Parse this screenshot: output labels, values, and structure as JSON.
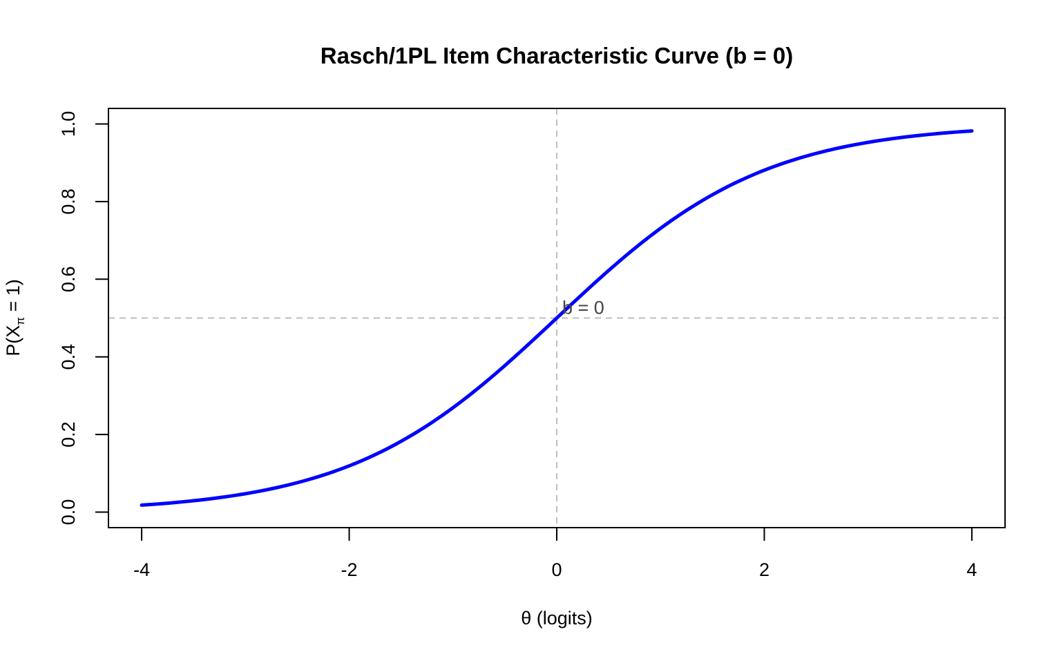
{
  "chart_data": {
    "type": "line",
    "title": "Rasch/1PL Item Characteristic Curve (b = 0)",
    "xlabel": "θ (logits)",
    "ylabel": "P(X_π = 1)",
    "ylabel_parts": {
      "prefix": "P(X",
      "subscript": "π",
      "suffix": " = 1)"
    },
    "xlim": [
      -4.32,
      4.32
    ],
    "ylim": [
      -0.04,
      1.04
    ],
    "x_ticks": [
      -4,
      -2,
      0,
      2,
      4
    ],
    "x_tick_labels": [
      "-4",
      "-2",
      "0",
      "2",
      "4"
    ],
    "y_ticks": [
      0,
      0.2,
      0.4,
      0.6,
      0.8,
      1
    ],
    "y_tick_labels": [
      "0.0",
      "0.2",
      "0.4",
      "0.6",
      "0.8",
      "1.0"
    ],
    "grid": false,
    "legend": "none",
    "series": [
      {
        "color": "#0000ff",
        "x": [
          -4,
          -3.5,
          -3,
          -2.5,
          -2,
          -1.5,
          -1,
          -0.5,
          0,
          0.5,
          1,
          1.5,
          2,
          2.5,
          3,
          3.5,
          4
        ],
        "y": [
          0.018,
          0.029,
          0.047,
          0.076,
          0.119,
          0.182,
          0.269,
          0.378,
          0.5,
          0.622,
          0.731,
          0.818,
          0.881,
          0.924,
          0.953,
          0.971,
          0.982
        ]
      }
    ],
    "reference_lines": {
      "vertical_x": 0,
      "horizontal_y": 0.5,
      "color": "#bebebe",
      "style": "dashed"
    },
    "annotations": [
      {
        "text": "b = 0",
        "x": 0,
        "y": 0.5
      }
    ]
  }
}
